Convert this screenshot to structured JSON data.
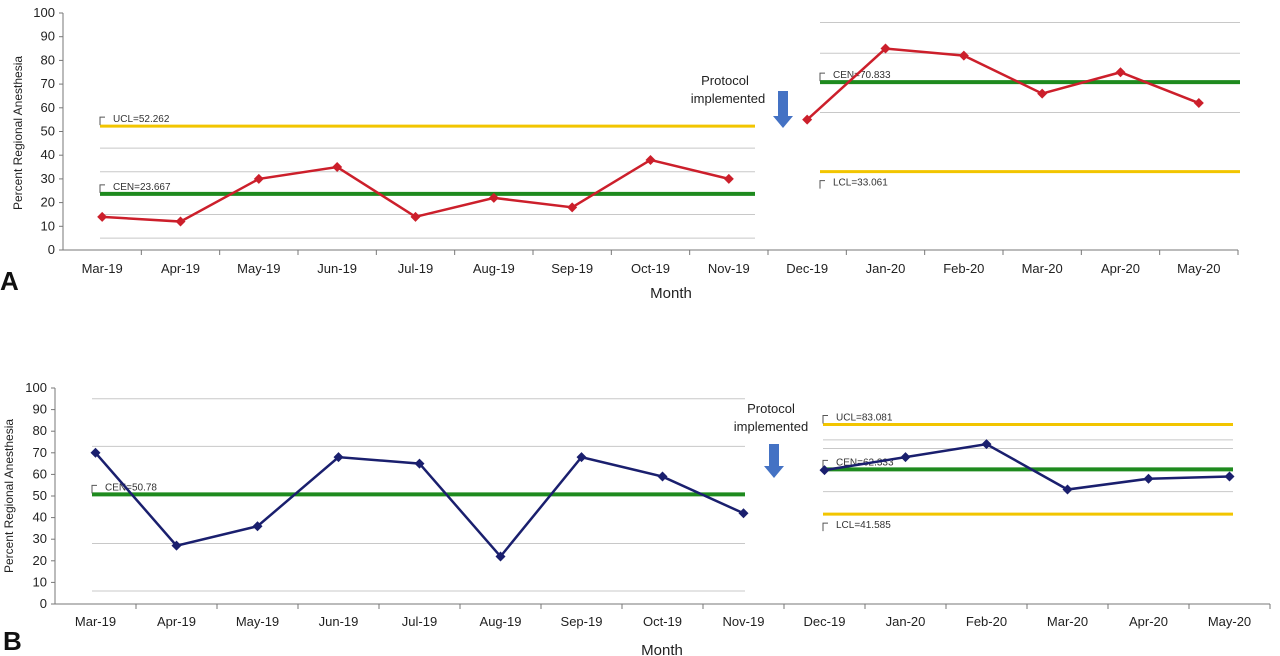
{
  "chart_data": [
    {
      "type": "line",
      "panel": "A",
      "xlabel": "Month",
      "ylabel": "Percent Regional Anesthesia",
      "ylim": [
        0,
        100
      ],
      "yticks": [
        "0",
        "10",
        "20",
        "30",
        "40",
        "50",
        "60",
        "70",
        "80",
        "90",
        "100"
      ],
      "categories": [
        "Mar-19",
        "Apr-19",
        "May-19",
        "Jun-19",
        "Jul-19",
        "Aug-19",
        "Sep-19",
        "Oct-19",
        "Nov-19",
        "Dec-19",
        "Jan-20",
        "Feb-20",
        "Mar-20",
        "Apr-20",
        "May-20"
      ],
      "series_color": "#cc1f2b",
      "segments": [
        {
          "categories": [
            "Mar-19",
            "Apr-19",
            "May-19",
            "Jun-19",
            "Jul-19",
            "Aug-19",
            "Sep-19",
            "Oct-19",
            "Nov-19"
          ],
          "values": [
            14,
            12,
            30,
            35,
            14,
            22,
            18,
            38,
            30
          ],
          "control_lines": [
            {
              "label": "UCL=52.262",
              "value": 52.262,
              "color": "#f2c500"
            },
            {
              "label": "CEN=23.667",
              "value": 23.667,
              "color": "#1e8a1e"
            }
          ],
          "grid": [
            5,
            15,
            33,
            43
          ]
        },
        {
          "categories": [
            "Dec-19",
            "Jan-20",
            "Feb-20",
            "Mar-20",
            "Apr-20",
            "May-20"
          ],
          "values": [
            55,
            85,
            82,
            66,
            75,
            62
          ],
          "control_lines": [
            {
              "label": "CEN=70.833",
              "value": 70.833,
              "color": "#1e8a1e"
            },
            {
              "label": "LCL=33.061",
              "value": 33.061,
              "color": "#f2c500"
            }
          ],
          "grid": [
            58,
            83,
            96
          ]
        }
      ],
      "annotation": [
        "Protocol",
        "implemented"
      ]
    },
    {
      "type": "line",
      "panel": "B",
      "xlabel": "Month",
      "ylabel": "Percent Regional Anesthesia",
      "ylim": [
        0,
        100
      ],
      "yticks": [
        "0",
        "10",
        "20",
        "30",
        "40",
        "50",
        "60",
        "70",
        "80",
        "90",
        "100"
      ],
      "categories": [
        "Mar-19",
        "Apr-19",
        "May-19",
        "Jun-19",
        "Jul-19",
        "Aug-19",
        "Sep-19",
        "Oct-19",
        "Nov-19",
        "Dec-19",
        "Jan-20",
        "Feb-20",
        "Mar-20",
        "Apr-20",
        "May-20"
      ],
      "series_color": "#1a1f6e",
      "segments": [
        {
          "categories": [
            "Mar-19",
            "Apr-19",
            "May-19",
            "Jun-19",
            "Jul-19",
            "Aug-19",
            "Sep-19",
            "Oct-19",
            "Nov-19"
          ],
          "values": [
            70,
            27,
            36,
            68,
            65,
            22,
            68,
            59,
            42
          ],
          "control_lines": [
            {
              "label": "CEN=50.78",
              "value": 50.78,
              "color": "#1e8a1e"
            }
          ],
          "grid": [
            6,
            28,
            73,
            95
          ]
        },
        {
          "categories": [
            "Dec-19",
            "Jan-20",
            "Feb-20",
            "Mar-20",
            "Apr-20",
            "May-20"
          ],
          "values": [
            62,
            68,
            74,
            53,
            58,
            59
          ],
          "control_lines": [
            {
              "label": "UCL=83.081",
              "value": 83.081,
              "color": "#f2c500"
            },
            {
              "label": "CEN=62.333",
              "value": 62.333,
              "color": "#1e8a1e"
            },
            {
              "label": "LCL=41.585",
              "value": 41.585,
              "color": "#f2c500"
            }
          ],
          "grid": [
            52,
            72,
            76
          ]
        }
      ],
      "annotation": [
        "Protocol",
        "implemented"
      ]
    }
  ]
}
